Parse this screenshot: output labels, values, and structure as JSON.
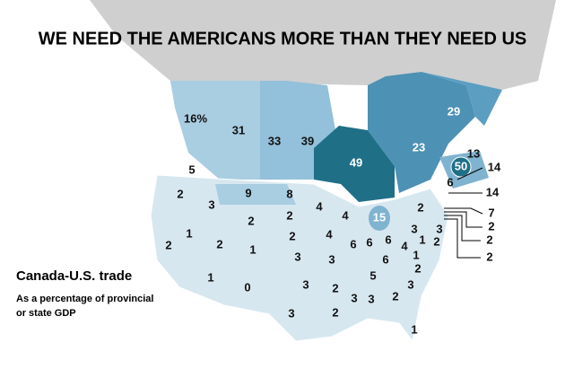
{
  "header": {
    "title": "WE NEED THE AMERICANS MORE THAN THEY NEED US"
  },
  "legend": {
    "title": "Canada-U.S. trade",
    "subtitle_lines": [
      "As a percentage of provincial",
      "or state GDP"
    ]
  },
  "labels": [
    "16%",
    "31",
    "33",
    "39",
    "49",
    "23",
    "29",
    "13",
    "50",
    "14",
    "6",
    "14",
    "7",
    "2",
    "2",
    "2",
    "5",
    "2",
    "3",
    "9",
    "8",
    "4",
    "4",
    "15",
    "2",
    "2",
    "2",
    "1",
    "2",
    "1",
    "2",
    "2",
    "4",
    "6",
    "6",
    "6",
    "3",
    "1",
    "3",
    "2",
    "4",
    "1",
    "3",
    "3",
    "6",
    "2",
    "1",
    "0",
    "3",
    "2",
    "5",
    "3",
    "3",
    "3",
    "2",
    "2",
    "3",
    "1"
  ]
}
